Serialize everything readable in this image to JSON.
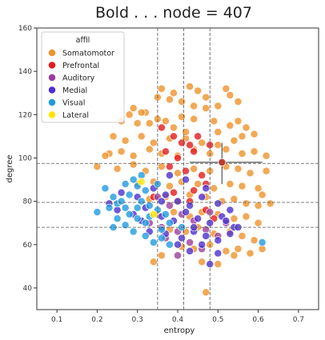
{
  "chart_data": {
    "type": "scatter",
    "title": "Bold . . . node = 407",
    "xlabel": "entropy",
    "ylabel": "degree",
    "xlim": [
      0.05,
      0.75
    ],
    "ylim": [
      30,
      160
    ],
    "xticks": [
      0.1,
      0.2,
      0.3,
      0.4,
      0.5,
      0.6,
      0.7
    ],
    "yticks": [
      40,
      60,
      80,
      100,
      120,
      140,
      160
    ],
    "xtick_labels": [
      "0.1",
      "0.2",
      "0.3",
      "0.4",
      "0.5",
      "0.6",
      "0.7"
    ],
    "ytick_labels": [
      "40",
      "60",
      "80",
      "100",
      "120",
      "140",
      "160"
    ],
    "grid": false,
    "legend": {
      "title": "affil",
      "placement": "top-left",
      "entries": [
        {
          "name": "Somatomotor",
          "color": "#ef922a"
        },
        {
          "name": "Prefrontal",
          "color": "#e31a1c"
        },
        {
          "name": "Auditory",
          "color": "#9c3d9b"
        },
        {
          "name": "Medial",
          "color": "#4b2fd0"
        },
        {
          "name": "Visual",
          "color": "#1f9be0"
        },
        {
          "name": "Lateral",
          "color": "#ffe600"
        }
      ]
    },
    "reference_lines": {
      "vertical": [
        0.35,
        0.415,
        0.48
      ],
      "horizontal": [
        68,
        79.5,
        97.5
      ]
    },
    "highlight_node": {
      "x": 0.51,
      "y": 98,
      "x_err": [
        0.43,
        0.61
      ],
      "y_err": [
        88,
        107
      ]
    },
    "series": [
      {
        "name": "Somatomotor",
        "color": "#ef922a",
        "points": [
          [
            0.29,
            123
          ],
          [
            0.32,
            121
          ],
          [
            0.35,
            128
          ],
          [
            0.38,
            127
          ],
          [
            0.41,
            126
          ],
          [
            0.44,
            124
          ],
          [
            0.47,
            123
          ],
          [
            0.5,
            124
          ],
          [
            0.53,
            129
          ],
          [
            0.55,
            126
          ],
          [
            0.36,
            132
          ],
          [
            0.43,
            133
          ],
          [
            0.52,
            132
          ],
          [
            0.39,
            130
          ],
          [
            0.47,
            128
          ],
          [
            0.45,
            131
          ],
          [
            0.3,
            116
          ],
          [
            0.33,
            116
          ],
          [
            0.37,
            117
          ],
          [
            0.41,
            119
          ],
          [
            0.44,
            118
          ],
          [
            0.49,
            117
          ],
          [
            0.53,
            115
          ],
          [
            0.55,
            117
          ],
          [
            0.24,
            110
          ],
          [
            0.27,
            108
          ],
          [
            0.31,
            110
          ],
          [
            0.34,
            107
          ],
          [
            0.38,
            109
          ],
          [
            0.42,
            109
          ],
          [
            0.46,
            107
          ],
          [
            0.5,
            106
          ],
          [
            0.54,
            108
          ],
          [
            0.56,
            110
          ],
          [
            0.59,
            111
          ],
          [
            0.23,
            102
          ],
          [
            0.26,
            103
          ],
          [
            0.29,
            101
          ],
          [
            0.33,
            104
          ],
          [
            0.36,
            102
          ],
          [
            0.4,
            101
          ],
          [
            0.44,
            104
          ],
          [
            0.48,
            102
          ],
          [
            0.52,
            104
          ],
          [
            0.56,
            102
          ],
          [
            0.59,
            103
          ],
          [
            0.62,
            101
          ],
          [
            0.25,
            95
          ],
          [
            0.29,
            97
          ],
          [
            0.32,
            94
          ],
          [
            0.36,
            96
          ],
          [
            0.4,
            93
          ],
          [
            0.44,
            95
          ],
          [
            0.48,
            94
          ],
          [
            0.52,
            96
          ],
          [
            0.55,
            95
          ],
          [
            0.58,
            93
          ],
          [
            0.62,
            94
          ],
          [
            0.3,
            88
          ],
          [
            0.34,
            89
          ],
          [
            0.38,
            87
          ],
          [
            0.41,
            89
          ],
          [
            0.45,
            88
          ],
          [
            0.49,
            86
          ],
          [
            0.53,
            88
          ],
          [
            0.56,
            87
          ],
          [
            0.6,
            86
          ],
          [
            0.61,
            83
          ],
          [
            0.33,
            81
          ],
          [
            0.37,
            82
          ],
          [
            0.4,
            80
          ],
          [
            0.43,
            83
          ],
          [
            0.47,
            82
          ],
          [
            0.51,
            80
          ],
          [
            0.54,
            81
          ],
          [
            0.57,
            79
          ],
          [
            0.6,
            78
          ],
          [
            0.63,
            79
          ],
          [
            0.35,
            74
          ],
          [
            0.39,
            75
          ],
          [
            0.43,
            73
          ],
          [
            0.46,
            75
          ],
          [
            0.5,
            74
          ],
          [
            0.54,
            72
          ],
          [
            0.57,
            73
          ],
          [
            0.6,
            70
          ],
          [
            0.38,
            67
          ],
          [
            0.42,
            66
          ],
          [
            0.45,
            68
          ],
          [
            0.49,
            65
          ],
          [
            0.53,
            66
          ],
          [
            0.56,
            64
          ],
          [
            0.59,
            62
          ],
          [
            0.41,
            59
          ],
          [
            0.44,
            58
          ],
          [
            0.48,
            60
          ],
          [
            0.52,
            57
          ],
          [
            0.55,
            58
          ],
          [
            0.58,
            56
          ],
          [
            0.61,
            58
          ],
          [
            0.36,
            55
          ],
          [
            0.34,
            52
          ],
          [
            0.46,
            52
          ],
          [
            0.5,
            51
          ],
          [
            0.54,
            55
          ],
          [
            0.47,
            38
          ],
          [
            0.2,
            96
          ],
          [
            0.22,
            101
          ],
          [
            0.28,
            120
          ],
          [
            0.31,
            121
          ],
          [
            0.26,
            117
          ],
          [
            0.35,
            118
          ],
          [
            0.5,
            112
          ],
          [
            0.57,
            114
          ],
          [
            0.42,
            112
          ],
          [
            0.39,
            114
          ]
        ]
      },
      {
        "name": "Prefrontal",
        "color": "#e31a1c",
        "points": [
          [
            0.36,
            114
          ],
          [
            0.39,
            110
          ],
          [
            0.41,
            107
          ],
          [
            0.43,
            106
          ],
          [
            0.44,
            103
          ],
          [
            0.4,
            100
          ],
          [
            0.38,
            96
          ],
          [
            0.42,
            94
          ],
          [
            0.46,
            92
          ],
          [
            0.47,
            88
          ],
          [
            0.44,
            85
          ],
          [
            0.39,
            84
          ],
          [
            0.34,
            82
          ],
          [
            0.43,
            80
          ],
          [
            0.47,
            76
          ],
          [
            0.49,
            72
          ],
          [
            0.51,
            98
          ],
          [
            0.45,
            110
          ],
          [
            0.48,
            106
          ],
          [
            0.37,
            103
          ]
        ]
      },
      {
        "name": "Auditory",
        "color": "#9c3d9b",
        "points": [
          [
            0.35,
            82
          ],
          [
            0.38,
            78
          ],
          [
            0.41,
            74
          ],
          [
            0.44,
            71
          ],
          [
            0.4,
            66
          ],
          [
            0.37,
            63
          ],
          [
            0.43,
            61
          ],
          [
            0.46,
            58
          ],
          [
            0.4,
            55
          ],
          [
            0.47,
            67
          ],
          [
            0.5,
            64
          ],
          [
            0.52,
            70
          ],
          [
            0.33,
            70
          ],
          [
            0.36,
            68
          ],
          [
            0.48,
            75
          ]
        ]
      },
      {
        "name": "Medial",
        "color": "#4b2fd0",
        "points": [
          [
            0.26,
            84
          ],
          [
            0.3,
            82
          ],
          [
            0.34,
            86
          ],
          [
            0.37,
            83
          ],
          [
            0.4,
            80
          ],
          [
            0.43,
            78
          ],
          [
            0.46,
            82
          ],
          [
            0.5,
            79
          ],
          [
            0.53,
            76
          ],
          [
            0.25,
            76
          ],
          [
            0.29,
            74
          ],
          [
            0.32,
            77
          ],
          [
            0.36,
            73
          ],
          [
            0.39,
            71
          ],
          [
            0.42,
            75
          ],
          [
            0.45,
            72
          ],
          [
            0.48,
            70
          ],
          [
            0.51,
            73
          ],
          [
            0.54,
            68
          ],
          [
            0.33,
            66
          ],
          [
            0.37,
            65
          ],
          [
            0.41,
            63
          ],
          [
            0.44,
            66
          ],
          [
            0.47,
            64
          ],
          [
            0.5,
            62
          ],
          [
            0.53,
            65
          ],
          [
            0.4,
            60
          ],
          [
            0.43,
            57
          ],
          [
            0.46,
            60
          ],
          [
            0.5,
            56
          ],
          [
            0.38,
            92
          ],
          [
            0.42,
            90
          ],
          [
            0.47,
            86
          ],
          [
            0.48,
            51
          ],
          [
            0.52,
            71
          ],
          [
            0.44,
            68
          ],
          [
            0.36,
            80
          ],
          [
            0.23,
            79
          ],
          [
            0.31,
            71
          ],
          [
            0.55,
            68
          ]
        ]
      },
      {
        "name": "Visual",
        "color": "#1f9be0",
        "points": [
          [
            0.2,
            75
          ],
          [
            0.22,
            86
          ],
          [
            0.24,
            82
          ],
          [
            0.25,
            79
          ],
          [
            0.27,
            77
          ],
          [
            0.28,
            74
          ],
          [
            0.3,
            72
          ],
          [
            0.24,
            68
          ],
          [
            0.27,
            69
          ],
          [
            0.29,
            66
          ],
          [
            0.32,
            64
          ],
          [
            0.34,
            61
          ],
          [
            0.36,
            63
          ],
          [
            0.38,
            60
          ],
          [
            0.31,
            80
          ],
          [
            0.33,
            78
          ],
          [
            0.35,
            76
          ],
          [
            0.37,
            74
          ],
          [
            0.3,
            87
          ],
          [
            0.32,
            85
          ],
          [
            0.35,
            88
          ],
          [
            0.29,
            90
          ],
          [
            0.31,
            92
          ],
          [
            0.26,
            80
          ],
          [
            0.28,
            83
          ],
          [
            0.33,
            73
          ],
          [
            0.38,
            70
          ],
          [
            0.41,
            68
          ],
          [
            0.61,
            61
          ],
          [
            0.36,
            67
          ],
          [
            0.27,
            88
          ],
          [
            0.23,
            77
          ],
          [
            0.32,
            70
          ],
          [
            0.25,
            72
          ],
          [
            0.3,
            77
          ]
        ]
      },
      {
        "name": "Lateral",
        "color": "#ffe600",
        "points": [
          [
            0.31,
            89
          ],
          [
            0.34,
            74
          ]
        ]
      }
    ]
  }
}
